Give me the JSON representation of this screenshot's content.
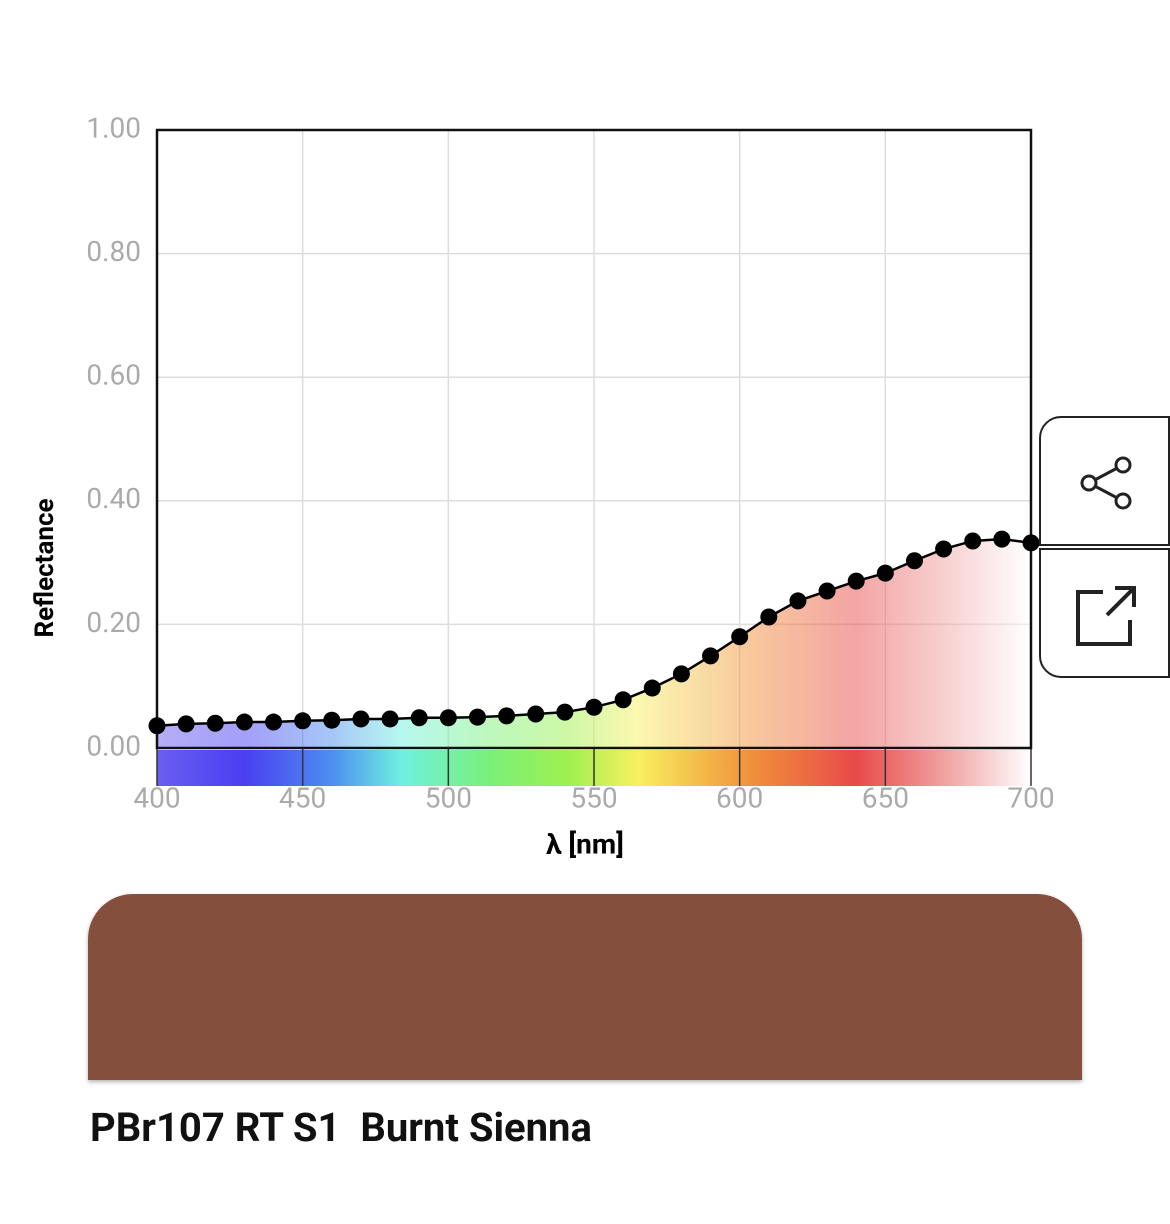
{
  "chart_data": {
    "type": "line",
    "x_label": "λ [nm]",
    "y_label": "Reflectance",
    "x": [
      400,
      410,
      420,
      430,
      440,
      450,
      460,
      470,
      480,
      490,
      500,
      510,
      520,
      530,
      540,
      550,
      560,
      570,
      580,
      590,
      600,
      610,
      620,
      630,
      640,
      650,
      660,
      670,
      680,
      690,
      700
    ],
    "values": [
      0.036,
      0.039,
      0.04,
      0.042,
      0.042,
      0.044,
      0.045,
      0.047,
      0.047,
      0.049,
      0.049,
      0.05,
      0.052,
      0.055,
      0.058,
      0.066,
      0.078,
      0.097,
      0.12,
      0.149,
      0.18,
      0.212,
      0.238,
      0.254,
      0.27,
      0.283,
      0.303,
      0.322,
      0.335,
      0.338,
      0.332
    ],
    "color": "#000000",
    "xlim": [
      400,
      700
    ],
    "xticks": [
      400,
      450,
      500,
      550,
      600,
      650,
      700
    ],
    "ylim": [
      0,
      1
    ],
    "yticks": [
      {
        "value": 0,
        "label": "0.00"
      },
      {
        "value": 0.2,
        "label": "0.20"
      },
      {
        "value": 0.4,
        "label": "0.40"
      },
      {
        "value": 0.6,
        "label": "0.60"
      },
      {
        "value": 0.8,
        "label": "0.80"
      },
      {
        "value": 1,
        "label": "1.00"
      }
    ],
    "grid": true
  },
  "pigment": {
    "name": "PBr107 RT S1  Burnt Sienna",
    "color": "#854f3d"
  }
}
